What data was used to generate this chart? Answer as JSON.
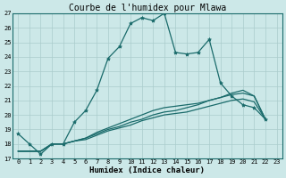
{
  "title": "Courbe de l'humidex pour Mlawa",
  "xlabel": "Humidex (Indice chaleur)",
  "bg_color": "#cce8e8",
  "grid_color": "#aacccc",
  "line_color": "#1a6b6b",
  "xlim": [
    -0.5,
    23.5
  ],
  "ylim": [
    17,
    27
  ],
  "xticks": [
    0,
    1,
    2,
    3,
    4,
    5,
    6,
    7,
    8,
    9,
    10,
    11,
    12,
    13,
    14,
    15,
    16,
    17,
    18,
    19,
    20,
    21,
    22,
    23
  ],
  "yticks": [
    17,
    18,
    19,
    20,
    21,
    22,
    23,
    24,
    25,
    26,
    27
  ],
  "series": [
    [
      18.7,
      18.0,
      17.3,
      18.0,
      18.0,
      19.5,
      20.3,
      21.7,
      23.9,
      24.7,
      26.3,
      26.7,
      26.5,
      27.0,
      24.3,
      24.2,
      24.3,
      25.2,
      22.2,
      21.3,
      20.7,
      20.5,
      19.7
    ],
    [
      17.5,
      17.5,
      17.5,
      18.0,
      18.0,
      18.2,
      18.4,
      18.7,
      19.0,
      19.2,
      19.5,
      19.7,
      20.0,
      20.2,
      20.3,
      20.5,
      20.7,
      21.0,
      21.2,
      21.4,
      21.5,
      21.3,
      19.7
    ],
    [
      17.5,
      17.5,
      17.5,
      18.0,
      18.0,
      18.2,
      18.4,
      18.8,
      19.1,
      19.4,
      19.7,
      20.0,
      20.3,
      20.5,
      20.6,
      20.7,
      20.8,
      21.0,
      21.2,
      21.5,
      21.7,
      21.3,
      19.7
    ],
    [
      17.5,
      17.5,
      17.5,
      18.0,
      18.0,
      18.2,
      18.3,
      18.6,
      18.9,
      19.1,
      19.3,
      19.6,
      19.8,
      20.0,
      20.1,
      20.2,
      20.4,
      20.6,
      20.8,
      21.0,
      21.1,
      20.9,
      19.7
    ]
  ],
  "x_start": 0,
  "title_fontsize": 7,
  "xlabel_fontsize": 6.5,
  "tick_fontsize": 5,
  "linewidth": 0.9,
  "marker_size": 3
}
